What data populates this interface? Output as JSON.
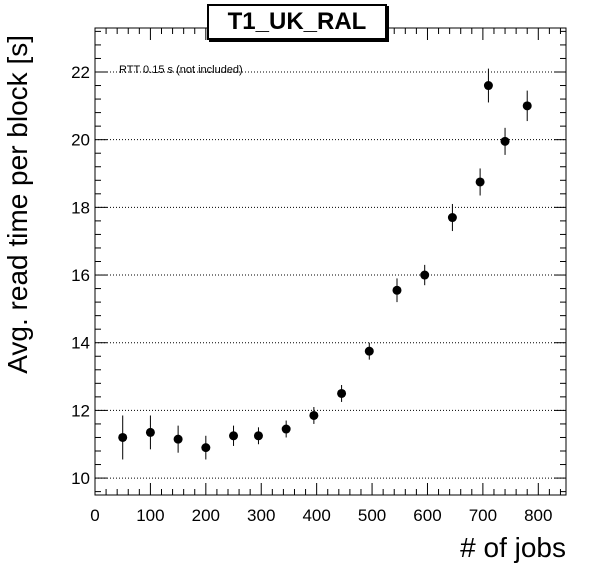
{
  "chart_data": {
    "type": "scatter",
    "title": "T1_UK_RAL",
    "xlabel": "# of jobs",
    "ylabel": "Avg. read time per block [s]",
    "annotation": "RTT 0.15 s (not included)",
    "xlim": [
      0,
      850
    ],
    "ylim": [
      9.5,
      23.3
    ],
    "x_ticks": [
      0,
      100,
      200,
      300,
      400,
      500,
      600,
      700,
      800
    ],
    "y_ticks": [
      10,
      12,
      14,
      16,
      18,
      20,
      22
    ],
    "grid": "horizontal dotted at major y ticks",
    "points": [
      {
        "x": 50,
        "y": 11.2,
        "err": 0.65
      },
      {
        "x": 100,
        "y": 11.35,
        "err": 0.5
      },
      {
        "x": 150,
        "y": 11.15,
        "err": 0.4
      },
      {
        "x": 200,
        "y": 10.9,
        "err": 0.35
      },
      {
        "x": 250,
        "y": 11.25,
        "err": 0.3
      },
      {
        "x": 295,
        "y": 11.25,
        "err": 0.25
      },
      {
        "x": 345,
        "y": 11.45,
        "err": 0.25
      },
      {
        "x": 395,
        "y": 11.85,
        "err": 0.25
      },
      {
        "x": 445,
        "y": 12.5,
        "err": 0.25
      },
      {
        "x": 495,
        "y": 13.75,
        "err": 0.25
      },
      {
        "x": 545,
        "y": 15.55,
        "err": 0.35
      },
      {
        "x": 595,
        "y": 16.0,
        "err": 0.3
      },
      {
        "x": 645,
        "y": 17.7,
        "err": 0.4
      },
      {
        "x": 695,
        "y": 18.75,
        "err": 0.4
      },
      {
        "x": 710,
        "y": 21.6,
        "err": 0.5
      },
      {
        "x": 740,
        "y": 19.95,
        "err": 0.4
      },
      {
        "x": 780,
        "y": 21.0,
        "err": 0.45
      }
    ]
  }
}
